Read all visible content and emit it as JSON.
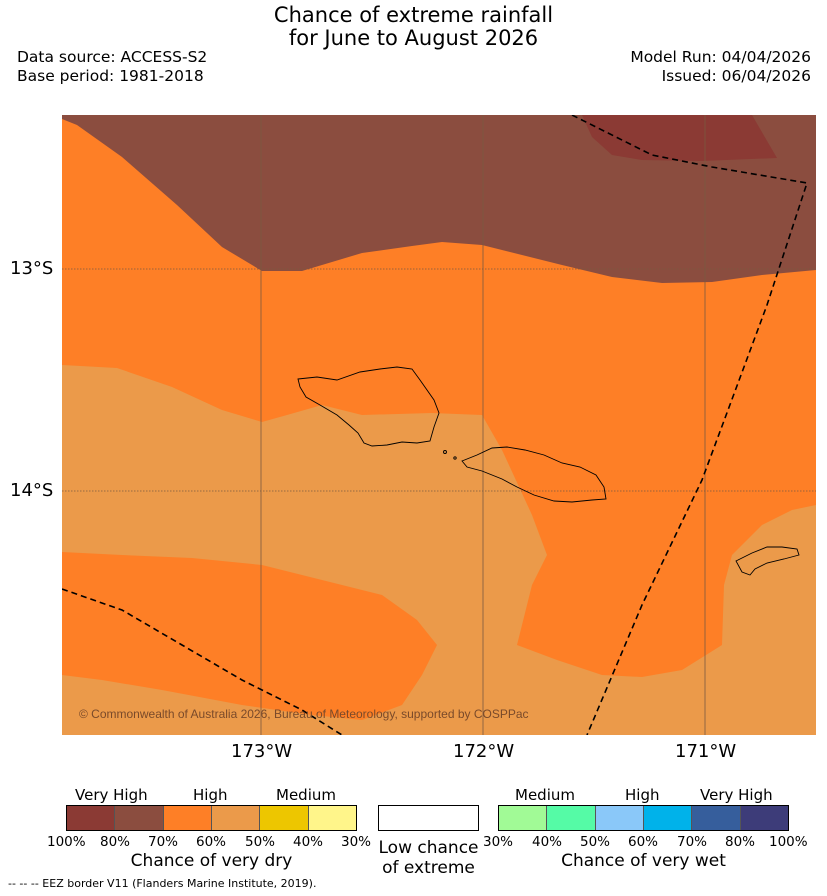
{
  "title_line1": "Chance of extreme rainfall",
  "title_line2": "for June to August 2026",
  "data_source": "Data source: ACCESS-S2",
  "base_period": "Base period: 1981-2018",
  "model_run": "Model Run: 04/04/2026",
  "issued": "Issued: 06/04/2026",
  "lat_labels": [
    "13°S",
    "14°S"
  ],
  "lon_labels": [
    "173°W",
    "172°W",
    "171°W"
  ],
  "copyright": "© Commonwealth of Australia 2026, Bureau of Meteorology, supported by COSPPac",
  "colors": {
    "very_high_dry_1": "#8b3a34",
    "very_high_dry_2": "#8b4d3f",
    "high_dry_1": "#fe7f26",
    "high_dry_2": "#eb9a4a",
    "medium_dry_1": "#edc600",
    "medium_dry_2": "#fff58a",
    "medium_wet_1": "#a1fa96",
    "medium_wet_2": "#55fba6",
    "high_wet_1": "#8ac8f9",
    "high_wet_2": "#00b2ea",
    "very_high_wet_1": "#365e9c",
    "very_high_wet_2": "#3d3c79"
  },
  "legend": {
    "dry": {
      "categories": [
        "Very High",
        "High",
        "Medium"
      ],
      "ticks": [
        "100%",
        "80%",
        "70%",
        "60%",
        "50%",
        "40%",
        "30%"
      ],
      "title": "Chance of very dry"
    },
    "low": {
      "line1": "Low chance",
      "line2": "of extreme"
    },
    "wet": {
      "categories": [
        "Medium",
        "High",
        "Very High"
      ],
      "ticks": [
        "30%",
        "40%",
        "50%",
        "60%",
        "70%",
        "80%",
        "100%"
      ],
      "title": "Chance of very wet"
    }
  },
  "footnote": "-- -- -- EEZ border V11 (Flanders Marine Institute, 2019)."
}
